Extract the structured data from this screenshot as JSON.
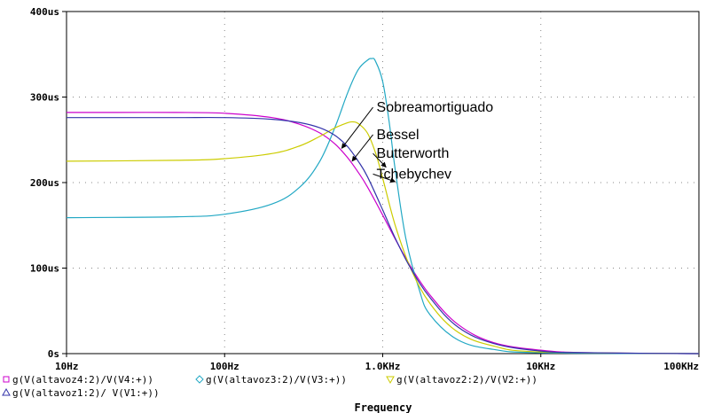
{
  "chart_data": {
    "type": "line",
    "x_scale": "log",
    "xlim": [
      "10Hz",
      "100KHz"
    ],
    "ylim": [
      0,
      400
    ],
    "y_unit": "us",
    "grid": true,
    "xlabel": "Frequency",
    "x_ticks": [
      "10Hz",
      "100Hz",
      "1.0KHz",
      "10KHz",
      "100KHz"
    ],
    "y_ticks": [
      "0s",
      "100us",
      "200us",
      "300us",
      "400us"
    ],
    "series": [
      {
        "name": "g(V(altavoz4:2)/V(V4:+))",
        "color": "#cc00cc",
        "marker": "square",
        "x": [
          10,
          20,
          50,
          100,
          200,
          300,
          400,
          500,
          600,
          700,
          800,
          1000,
          1200,
          1500,
          2000,
          3000,
          5000,
          10000,
          20000,
          100000
        ],
        "y": [
          282,
          282,
          282,
          281,
          276,
          268,
          258,
          245,
          229,
          212,
          195,
          162,
          134,
          102,
          68,
          34,
          13,
          4,
          1,
          0
        ]
      },
      {
        "name": "g(V(altavoz3:2)/V(V3:+))",
        "color": "#22a8c4",
        "marker": "diamond",
        "x": [
          10,
          50,
          100,
          200,
          300,
          400,
          500,
          600,
          700,
          800,
          850,
          900,
          1000,
          1100,
          1200,
          1400,
          1700,
          2000,
          3000,
          5000,
          10000,
          100000
        ],
        "y": [
          159,
          160,
          163,
          175,
          195,
          225,
          265,
          305,
          332,
          343,
          345,
          342,
          318,
          270,
          215,
          135,
          75,
          45,
          16,
          5,
          1,
          0
        ]
      },
      {
        "name": "g(V(altavoz2:2)/V(V2:+))",
        "color": "#cccc00",
        "marker": "triangle-down",
        "x": [
          10,
          50,
          100,
          200,
          300,
          400,
          500,
          600,
          650,
          700,
          800,
          900,
          1000,
          1200,
          1500,
          2000,
          3000,
          5000,
          10000,
          100000
        ],
        "y": [
          225,
          226,
          228,
          234,
          243,
          254,
          264,
          270,
          271,
          269,
          258,
          235,
          205,
          150,
          100,
          58,
          25,
          9,
          2,
          0
        ]
      },
      {
        "name": "g(V(altavoz1:2)/ V(V1:+))",
        "color": "#3333aa",
        "marker": "triangle-up",
        "x": [
          10,
          20,
          50,
          100,
          200,
          300,
          400,
          500,
          600,
          700,
          800,
          1000,
          1200,
          1500,
          2000,
          3000,
          5000,
          10000,
          20000,
          100000
        ],
        "y": [
          276,
          276,
          276,
          276,
          274,
          270,
          264,
          255,
          242,
          225,
          207,
          168,
          135,
          100,
          65,
          31,
          12,
          3,
          1,
          0
        ]
      }
    ],
    "annotations": [
      {
        "text": "Sobreamortiguado",
        "x": 3000,
        "y": 288,
        "target_x": 550,
        "target_y": 240
      },
      {
        "text": "Bessel",
        "x": 3000,
        "y": 256,
        "target_x": 640,
        "target_y": 225
      },
      {
        "text": "Butterworth",
        "x": 3000,
        "y": 234,
        "target_x": 1050,
        "target_y": 218
      },
      {
        "text": "Tchebychev",
        "x": 3000,
        "y": 210,
        "target_x": 1200,
        "target_y": 201
      }
    ]
  }
}
